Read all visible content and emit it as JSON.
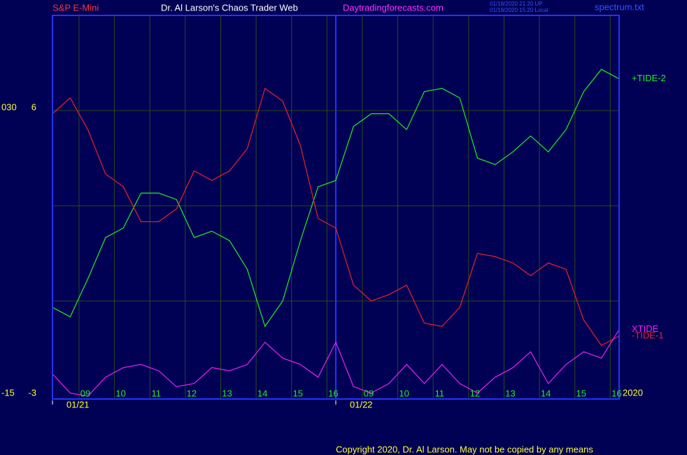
{
  "chart_data": {
    "type": "line",
    "header": {
      "symbol": "S&P E-Mini",
      "title": "Dr. Al Larson's Chaos Trader Web",
      "site": "Daytradingforecasts.com",
      "stamp_utc": "01/18/2020 21:20 UP",
      "stamp_local": "01/18/2020 15:20 Local",
      "file": "spectrum.txt"
    },
    "copyright": "Copyright 2020, Dr. Al Larson. May not be copied by any means",
    "year": "2020",
    "x": [
      0,
      0.5,
      1,
      1.5,
      2,
      2.5,
      3,
      3.5,
      4,
      4.5,
      5,
      5.5,
      6,
      6.5,
      7,
      7.5,
      8,
      8.5,
      9,
      9.5,
      10,
      10.5,
      11,
      11.5,
      12,
      12.5,
      13,
      13.5,
      14,
      14.5,
      15,
      15.5,
      16
    ],
    "xlim": [
      0,
      16
    ],
    "xticks": [
      {
        "value": 0.75,
        "label": "09"
      },
      {
        "value": 1.75,
        "label": "10"
      },
      {
        "value": 2.75,
        "label": "11"
      },
      {
        "value": 3.75,
        "label": "12"
      },
      {
        "value": 4.75,
        "label": "13"
      },
      {
        "value": 5.75,
        "label": "14"
      },
      {
        "value": 6.75,
        "label": "15"
      },
      {
        "value": 7.75,
        "label": "16"
      },
      {
        "value": 8.75,
        "label": "09"
      },
      {
        "value": 9.75,
        "label": "10"
      },
      {
        "value": 10.75,
        "label": "11"
      },
      {
        "value": 11.75,
        "label": "12"
      },
      {
        "value": 12.75,
        "label": "13"
      },
      {
        "value": 13.75,
        "label": "14"
      },
      {
        "value": 14.75,
        "label": "15"
      },
      {
        "value": 15.75,
        "label": "16"
      }
    ],
    "date_ticks": [
      {
        "value": 0,
        "label": "01/21"
      },
      {
        "value": 8,
        "label": "01/22"
      }
    ],
    "ylim": [
      -3,
      9
    ],
    "yticks": [
      -3,
      6
    ],
    "ygrid": [
      0,
      3,
      6
    ],
    "y2lim": [
      -15,
      45
    ],
    "y2ticks": [
      {
        "value": -15,
        "label": "-15"
      },
      {
        "value": 30,
        "label": "030"
      }
    ],
    "series": [
      {
        "name": "+TIDE-2",
        "color": "#22ee22",
        "values": [
          -0.2,
          -0.5,
          0.7,
          2.0,
          2.3,
          3.4,
          3.4,
          3.2,
          2.0,
          2.2,
          1.9,
          1.0,
          -0.8,
          0.0,
          1.9,
          3.6,
          3.8,
          5.5,
          5.9,
          5.9,
          5.4,
          6.6,
          6.7,
          6.4,
          4.5,
          4.3,
          4.7,
          5.2,
          4.7,
          5.4,
          6.6,
          7.3,
          7.0
        ]
      },
      {
        "name": "-TIDE-1",
        "color": "#ee2222",
        "values": [
          5.9,
          6.4,
          5.4,
          4.0,
          3.6,
          2.5,
          2.5,
          2.9,
          4.1,
          3.8,
          4.1,
          4.8,
          6.7,
          6.3,
          4.9,
          2.6,
          2.3,
          0.5,
          0.0,
          0.2,
          0.5,
          -0.7,
          -0.8,
          -0.2,
          1.5,
          1.4,
          1.2,
          0.8,
          1.2,
          1.0,
          -0.6,
          -1.4,
          -1.1
        ]
      },
      {
        "name": "XTIDE",
        "color": "#ee22ee",
        "values": [
          -2.3,
          -2.9,
          -3.0,
          -2.4,
          -2.1,
          -2.0,
          -2.2,
          -2.7,
          -2.6,
          -2.1,
          -2.2,
          -2.0,
          -1.3,
          -1.8,
          -2.0,
          -2.4,
          -1.3,
          -2.7,
          -2.9,
          -2.6,
          -2.0,
          -2.6,
          -2.0,
          -2.6,
          -2.9,
          -2.4,
          -2.1,
          -1.6,
          -2.6,
          -2.0,
          -1.6,
          -1.8,
          -0.9
        ]
      }
    ]
  }
}
